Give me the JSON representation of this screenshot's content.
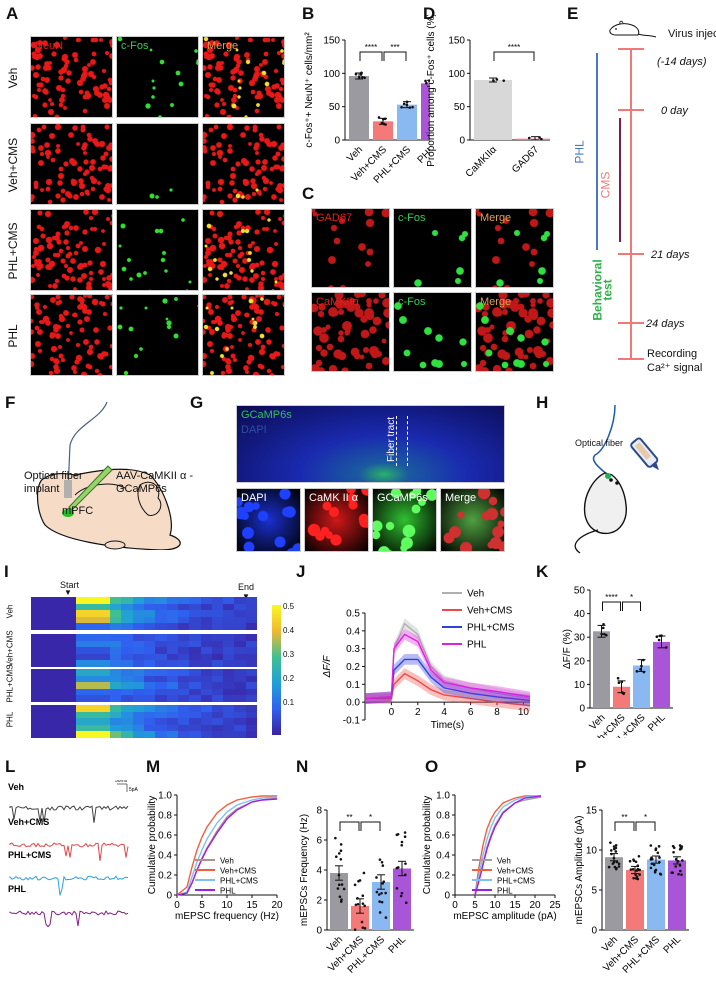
{
  "panels": {
    "A": {
      "label": "A",
      "columns": [
        "NeuN",
        "c-Fos",
        "Merge"
      ],
      "rows": [
        "Veh",
        "Veh+CMS",
        "PHL+CMS",
        "PHL"
      ]
    },
    "B": {
      "label": "B"
    },
    "C": {
      "label": "C",
      "rows": [
        {
          "channels": [
            "GAD67",
            "c-Fos",
            "Merge"
          ]
        },
        {
          "channels": [
            "CaMKIIα",
            "c-Fos",
            "Merge"
          ]
        }
      ]
    },
    "D": {
      "label": "D"
    },
    "E": {
      "label": "E",
      "timepoints": [
        "Virus injection",
        "(-14 days)",
        "0 day",
        "21 days",
        "24 days",
        "Recording",
        "Ca²⁺ signal"
      ],
      "bars": {
        "phl": "PHL",
        "cms": "CMS",
        "behavior1": "Behavioral",
        "behavior2": "test"
      }
    },
    "F": {
      "label": "F",
      "fiber_label_1": "Optical fiber",
      "fiber_label_2": "implant",
      "virus_label_1": "AAV-CaMKII α -",
      "virus_label_2": "GCaMP6s",
      "region_label": "mPFC"
    },
    "G": {
      "label": "G",
      "top_labels": [
        "GCaMP6s",
        "DAPI"
      ],
      "tract_label": "Fiber tract",
      "bottom_channels": [
        "DAPI",
        "CaMK II α",
        "GCaMP6s",
        "Merge"
      ]
    },
    "H": {
      "label": "H",
      "fiber_label": "Optical fiber"
    },
    "I": {
      "label": "I",
      "start_label": "Start",
      "end_label": "End",
      "rows": [
        "Veh",
        "Veh+CMS",
        "PHL+CMS",
        "PHL"
      ],
      "colorbar_ticks": [
        "0.5",
        "0.4",
        "0.3",
        "0.2",
        "0.1"
      ]
    },
    "J": {
      "label": "J"
    },
    "K": {
      "label": "K"
    },
    "L": {
      "label": "L",
      "traces": [
        "Veh",
        "Veh+CMS",
        "PHL+CMS",
        "PHL"
      ],
      "scale_time": "50ms",
      "scale_amp": "5pA"
    },
    "M": {
      "label": "M"
    },
    "N": {
      "label": "N"
    },
    "O": {
      "label": "O"
    },
    "P": {
      "label": "P"
    }
  },
  "colors": {
    "veh": "#9a9aa0",
    "veh_cms": "#f47a7a",
    "phl_cms": "#8ab8f0",
    "phl": "#a855d8",
    "timeline": "#f07878",
    "phl_bar": "#4a78c0",
    "cms_bar": "#7a2050",
    "behavior": "#2fb04a"
  },
  "chart_data": [
    {
      "panel": "B",
      "type": "bar",
      "categories": [
        "Veh",
        "Veh+CMS",
        "PHL+CMS",
        "PHL"
      ],
      "values": [
        96,
        28,
        53,
        85
      ],
      "ylabel": "c-Fos⁺+ NeuN⁺ cells/mm²",
      "ylim": [
        0,
        150
      ],
      "yticks": [
        0,
        50,
        100,
        150
      ],
      "significance": [
        {
          "pair": [
            "Veh",
            "Veh+CMS"
          ],
          "label": "****"
        },
        {
          "pair": [
            "Veh+CMS",
            "PHL+CMS"
          ],
          "label": "***"
        }
      ]
    },
    {
      "panel": "D",
      "type": "bar",
      "categories": [
        "CaMKIIα",
        "GAD67"
      ],
      "values": [
        90,
        2
      ],
      "ylabel": "Proportion among c-Fos⁺ cells (%)",
      "ylim": [
        0,
        150
      ],
      "yticks": [
        0,
        50,
        100,
        150
      ],
      "significance": [
        {
          "pair": [
            "CaMKIIα",
            "GAD67"
          ],
          "label": "****"
        }
      ]
    },
    {
      "panel": "I",
      "type": "heatmap",
      "rows": [
        "Veh",
        "Veh+CMS",
        "PHL+CMS",
        "PHL"
      ],
      "colorbar_range": [
        0.05,
        0.5
      ],
      "colorbar_ticks": [
        0.1,
        0.2,
        0.3,
        0.4,
        0.5
      ]
    },
    {
      "panel": "J",
      "type": "line",
      "xlabel": "Time(s)",
      "ylabel": "ΔF/F",
      "xlim": [
        -2,
        10.5
      ],
      "ylim": [
        -0.1,
        0.5
      ],
      "xticks": [
        0,
        2,
        4,
        6,
        8,
        10
      ],
      "yticks": [
        -0.1,
        0.0,
        0.1,
        0.2,
        0.3,
        0.4,
        0.5
      ],
      "x": [
        -2,
        0,
        0.2,
        1,
        2,
        3,
        4,
        6,
        8,
        10.5
      ],
      "series": [
        {
          "name": "Veh",
          "values": [
            0.02,
            0.03,
            0.3,
            0.44,
            0.38,
            0.2,
            0.12,
            0.08,
            0.05,
            0.02
          ]
        },
        {
          "name": "Veh+CMS",
          "values": [
            0.02,
            0.02,
            0.1,
            0.16,
            0.12,
            0.07,
            0.04,
            0.02,
            0.0,
            -0.02
          ]
        },
        {
          "name": "PHL+CMS",
          "values": [
            0.02,
            0.03,
            0.18,
            0.24,
            0.24,
            0.14,
            0.08,
            0.05,
            0.03,
            0.01
          ]
        },
        {
          "name": "PHL",
          "values": [
            0.02,
            0.03,
            0.3,
            0.38,
            0.34,
            0.18,
            0.11,
            0.08,
            0.06,
            0.03
          ]
        }
      ],
      "legend": [
        "Veh",
        "Veh+CMS",
        "PHL+CMS",
        "PHL"
      ]
    },
    {
      "panel": "K",
      "type": "bar",
      "categories": [
        "Veh",
        "Veh+CMS",
        "PHL+CMS",
        "PHL"
      ],
      "values": [
        32.5,
        9,
        18,
        28
      ],
      "ylabel": "ΔF/F (%)",
      "ylim": [
        0,
        50
      ],
      "yticks": [
        0,
        10,
        20,
        30,
        40,
        50
      ],
      "significance": [
        {
          "pair": [
            "Veh",
            "Veh+CMS"
          ],
          "label": "****"
        },
        {
          "pair": [
            "Veh+CMS",
            "PHL+CMS"
          ],
          "label": "*"
        }
      ]
    },
    {
      "panel": "M",
      "type": "line",
      "xlabel": "mEPSC frequency (Hz)",
      "ylabel": "Cumulative probability",
      "xlim": [
        0,
        20
      ],
      "ylim": [
        0,
        1.0
      ],
      "xticks": [
        0,
        5,
        10,
        15,
        20
      ],
      "yticks": [
        0,
        0.2,
        0.4,
        0.6,
        0.8,
        1.0
      ],
      "x": [
        0,
        2,
        3,
        4,
        5,
        6,
        8,
        10,
        12,
        15,
        17,
        20
      ],
      "series": [
        {
          "name": "Veh",
          "values": [
            0,
            0.02,
            0.12,
            0.25,
            0.37,
            0.47,
            0.64,
            0.78,
            0.86,
            0.93,
            0.95,
            0.97
          ]
        },
        {
          "name": "Veh+CMS",
          "values": [
            0,
            0.08,
            0.28,
            0.45,
            0.58,
            0.68,
            0.82,
            0.9,
            0.95,
            0.98,
            0.99,
            0.99
          ]
        },
        {
          "name": "PHL+CMS",
          "values": [
            0,
            0.03,
            0.18,
            0.33,
            0.45,
            0.56,
            0.72,
            0.83,
            0.9,
            0.95,
            0.97,
            0.98
          ]
        },
        {
          "name": "PHL",
          "values": [
            0,
            0.02,
            0.12,
            0.25,
            0.36,
            0.46,
            0.62,
            0.76,
            0.85,
            0.93,
            0.95,
            0.96
          ]
        }
      ],
      "legend": [
        "Veh",
        "Veh+CMS",
        "PHL+CMS",
        "PHL"
      ]
    },
    {
      "panel": "N",
      "type": "bar",
      "categories": [
        "Veh",
        "Veh+CMS",
        "PHL+CMS",
        "PHL"
      ],
      "values": [
        3.8,
        1.6,
        3.2,
        4.1
      ],
      "ylabel": "mEPSCs Frequency (Hz)",
      "ylim": [
        0,
        8
      ],
      "yticks": [
        0,
        2,
        4,
        6,
        8
      ],
      "significance": [
        {
          "pair": [
            "Veh",
            "Veh+CMS"
          ],
          "label": "**"
        },
        {
          "pair": [
            "Veh+CMS",
            "PHL+CMS"
          ],
          "label": "*"
        }
      ]
    },
    {
      "panel": "O",
      "type": "line",
      "xlabel": "mEPSC amplitude (pA)",
      "ylabel": "Cumulative probability",
      "xlim": [
        0,
        25
      ],
      "ylim": [
        0,
        1.0
      ],
      "xticks": [
        0,
        5,
        10,
        15,
        20,
        25
      ],
      "yticks": [
        0,
        0.2,
        0.4,
        0.6,
        0.8,
        1.0
      ],
      "x": [
        5,
        6,
        7,
        8,
        9,
        10,
        12,
        15,
        17.5,
        21.5
      ],
      "series": [
        {
          "name": "Veh",
          "values": [
            0,
            0.15,
            0.32,
            0.48,
            0.6,
            0.7,
            0.83,
            0.92,
            0.95,
            0.98
          ]
        },
        {
          "name": "Veh+CMS",
          "values": [
            0,
            0.28,
            0.5,
            0.66,
            0.76,
            0.83,
            0.92,
            0.97,
            0.99,
            0.99
          ]
        },
        {
          "name": "PHL+CMS",
          "values": [
            0,
            0.2,
            0.4,
            0.56,
            0.68,
            0.77,
            0.88,
            0.95,
            0.98,
            0.99
          ]
        },
        {
          "name": "PHL",
          "values": [
            0,
            0.14,
            0.3,
            0.46,
            0.58,
            0.68,
            0.82,
            0.92,
            0.97,
            0.99
          ]
        }
      ],
      "legend": [
        "Veh",
        "Veh+CMS",
        "PHL+CMS",
        "PHL"
      ]
    },
    {
      "panel": "P",
      "type": "bar",
      "categories": [
        "Veh",
        "Veh+CMS",
        "PHL+CMS",
        "PHL"
      ],
      "values": [
        9.1,
        7.5,
        8.8,
        8.7
      ],
      "ylabel": "mEPSCs Amplitude (pA)",
      "ylim": [
        0,
        15
      ],
      "yticks": [
        0,
        5,
        10,
        15
      ],
      "significance": [
        {
          "pair": [
            "Veh",
            "Veh+CMS"
          ],
          "label": "**"
        },
        {
          "pair": [
            "Veh+CMS",
            "PHL+CMS"
          ],
          "label": "*"
        }
      ]
    }
  ]
}
